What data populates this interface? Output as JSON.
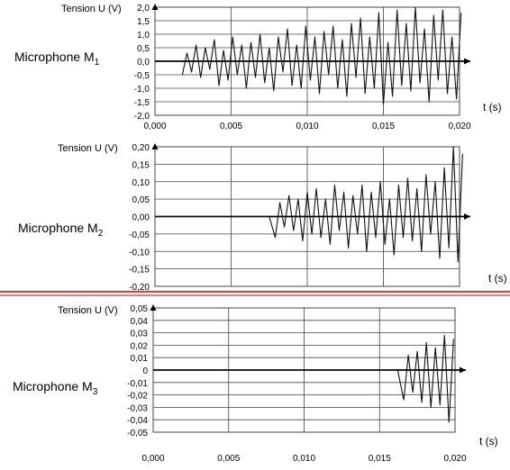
{
  "chart_data": [
    {
      "type": "line",
      "ylabel": "Tension U (V)",
      "xlabel": "t (s)",
      "series_label": "Microphone M",
      "series_subscript": "1",
      "ylim": [
        -2.0,
        2.0
      ],
      "xlim": [
        0,
        0.02
      ],
      "y_ticks": [
        "2,0",
        "1,5",
        "1,0",
        "0,5",
        "0,0",
        "-0,5",
        "-1,0",
        "-1,5",
        "-2,0"
      ],
      "x_ticks": [
        "0,000",
        "0,005",
        "0,010",
        "0,015",
        "0,020"
      ],
      "grid": true,
      "x": [
        0.0018,
        0.0021,
        0.0024,
        0.0027,
        0.003,
        0.0033,
        0.0036,
        0.0039,
        0.0042,
        0.0045,
        0.0048,
        0.0051,
        0.0054,
        0.0057,
        0.006,
        0.0063,
        0.0066,
        0.0069,
        0.0072,
        0.0075,
        0.0078,
        0.0081,
        0.0084,
        0.0087,
        0.009,
        0.0093,
        0.0096,
        0.0099,
        0.0102,
        0.0105,
        0.0108,
        0.0111,
        0.0114,
        0.0117,
        0.012,
        0.0123,
        0.0126,
        0.0129,
        0.0132,
        0.0135,
        0.0138,
        0.0141,
        0.0144,
        0.0147,
        0.015,
        0.0153,
        0.0156,
        0.0159,
        0.0162,
        0.0165,
        0.0168,
        0.0171,
        0.0174,
        0.0177,
        0.018,
        0.0183,
        0.0186,
        0.0189,
        0.0192,
        0.0195,
        0.0198,
        0.0201
      ],
      "y": [
        -0.5,
        0.3,
        -0.4,
        0.6,
        -0.6,
        0.5,
        -0.3,
        0.8,
        -0.9,
        0.4,
        -0.7,
        0.9,
        -0.5,
        0.6,
        -1.0,
        0.7,
        -0.6,
        1.0,
        -0.8,
        0.5,
        -1.1,
        0.9,
        -0.4,
        1.2,
        -0.9,
        0.6,
        -1.0,
        1.3,
        -0.7,
        0.9,
        -1.2,
        1.1,
        -0.5,
        1.3,
        -1.0,
        0.8,
        -1.3,
        1.4,
        -0.6,
        1.6,
        -1.2,
        0.9,
        -1.0,
        1.8,
        -1.6,
        0.7,
        -1.3,
        1.9,
        -0.9,
        1.4,
        -1.1,
        2.0,
        -0.8,
        1.2,
        -1.5,
        1.7,
        -0.7,
        1.9,
        -1.2,
        0.9,
        -1.4,
        1.8
      ]
    },
    {
      "type": "line",
      "ylabel": "Tension U (V)",
      "xlabel": "t (s)",
      "series_label": "Microphone M",
      "series_subscript": "2",
      "ylim": [
        -0.2,
        0.2
      ],
      "xlim": [
        0,
        0.02
      ],
      "y_ticks": [
        "0,20",
        "0,15",
        "0,10",
        "0,05",
        "0,00",
        "-0,05",
        "-0,10",
        "-0,15",
        "-0,20"
      ],
      "x_ticks": [],
      "grid": true,
      "x": [
        0.0,
        0.001,
        0.002,
        0.003,
        0.004,
        0.005,
        0.006,
        0.007,
        0.0075,
        0.0079,
        0.0082,
        0.0085,
        0.0088,
        0.0091,
        0.0094,
        0.0097,
        0.01,
        0.0103,
        0.0106,
        0.0109,
        0.0112,
        0.0115,
        0.0118,
        0.0121,
        0.0124,
        0.0127,
        0.013,
        0.0133,
        0.0136,
        0.0139,
        0.0142,
        0.0145,
        0.0148,
        0.0151,
        0.0154,
        0.0157,
        0.016,
        0.0163,
        0.0166,
        0.0169,
        0.0172,
        0.0175,
        0.0178,
        0.0181,
        0.0184,
        0.0187,
        0.019,
        0.0193,
        0.0196,
        0.0199,
        0.0202
      ],
      "y": [
        0,
        0,
        0,
        0,
        0,
        0,
        0,
        0,
        0,
        -0.06,
        0.04,
        -0.03,
        0.06,
        -0.04,
        0.05,
        -0.07,
        0.07,
        -0.05,
        0.08,
        -0.06,
        0.05,
        -0.08,
        0.09,
        -0.04,
        0.07,
        -0.09,
        0.06,
        -0.05,
        0.09,
        -0.1,
        0.07,
        -0.06,
        0.1,
        -0.08,
        0.05,
        -0.11,
        0.09,
        -0.06,
        0.11,
        -0.07,
        0.08,
        -0.1,
        0.12,
        -0.05,
        0.1,
        -0.12,
        0.14,
        -0.09,
        0.2,
        -0.13,
        0.18
      ]
    },
    {
      "type": "line",
      "ylabel": "Tension U (V)",
      "xlabel": "t (s)",
      "series_label": "Microphone M",
      "series_subscript": "3",
      "ylim": [
        -0.05,
        0.05
      ],
      "xlim": [
        0,
        0.02
      ],
      "y_ticks": [
        "0,05",
        "0,04",
        "0,03",
        "0,02",
        "0,01",
        "0",
        "-0,01",
        "-0,02",
        "-0,03",
        "-0,04",
        "-0,05"
      ],
      "x_ticks": [
        "0,000",
        "0,005",
        "0,010",
        "0,015",
        "0,020"
      ],
      "grid": true,
      "x": [
        0.0,
        0.002,
        0.004,
        0.006,
        0.008,
        0.01,
        0.012,
        0.014,
        0.0162,
        0.0166,
        0.0169,
        0.0172,
        0.0175,
        0.0178,
        0.0181,
        0.0184,
        0.0187,
        0.019,
        0.0193,
        0.0196,
        0.0199
      ],
      "y": [
        0,
        0,
        0,
        0,
        0,
        0,
        0,
        0,
        0,
        -0.024,
        0.012,
        -0.018,
        0.015,
        -0.026,
        0.022,
        -0.03,
        0.018,
        -0.028,
        0.028,
        -0.042,
        0.025
      ]
    }
  ],
  "divider_color": "#cc0000",
  "colors": {
    "line": "#111111",
    "grid": "#444444"
  }
}
